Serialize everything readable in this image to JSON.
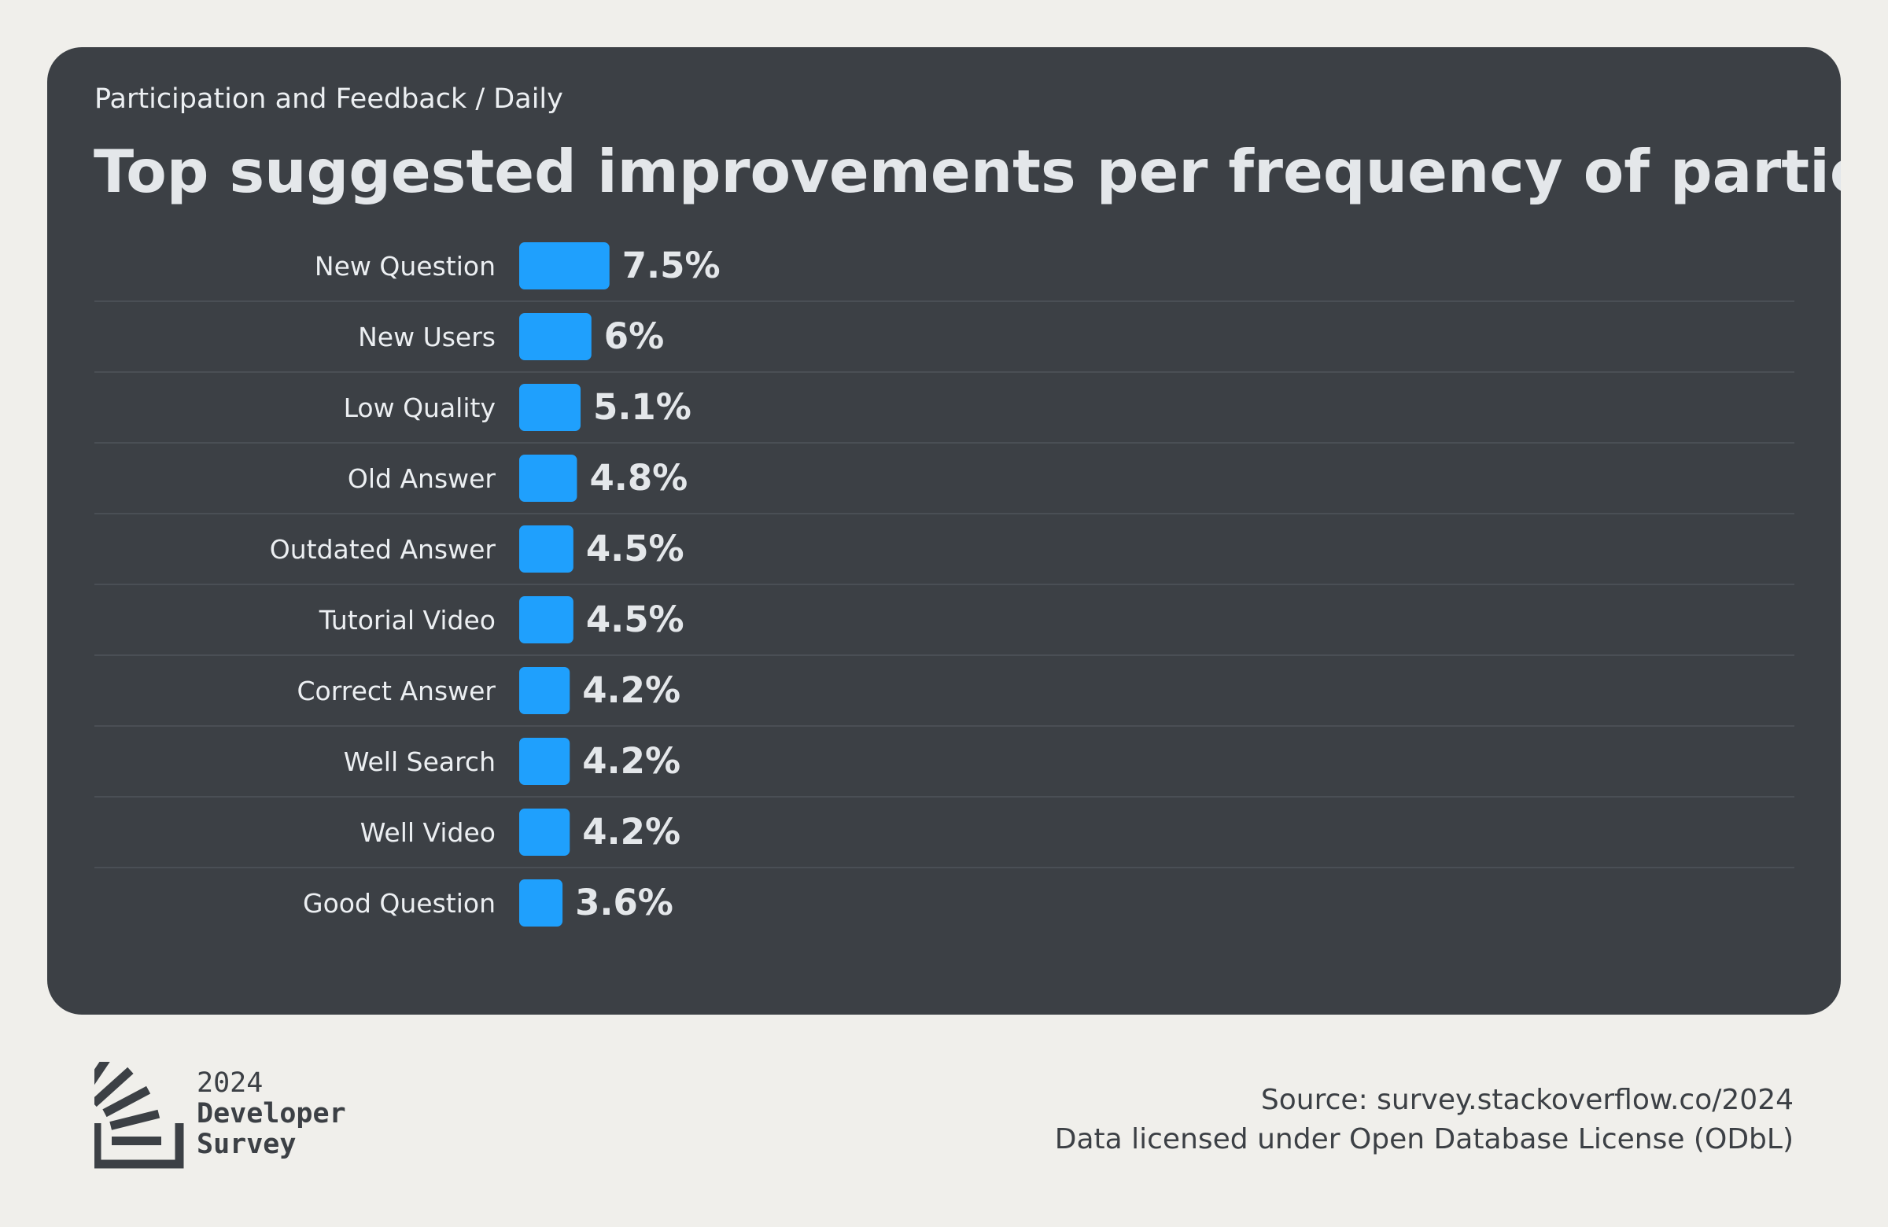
{
  "header": {
    "subtitle": "Participation and Feedback / Daily",
    "title": "Top suggested improvements per frequency of participation"
  },
  "chart_data": {
    "type": "bar",
    "orientation": "horizontal",
    "categories": [
      "New Question",
      "New Users",
      "Low Quality",
      "Old Answer",
      "Outdated Answer",
      "Tutorial Video",
      "Correct Answer",
      "Well Search",
      "Well Video",
      "Good Question"
    ],
    "values": [
      7.5,
      6,
      5.1,
      4.8,
      4.5,
      4.5,
      4.2,
      4.2,
      4.2,
      3.6
    ],
    "value_labels": [
      "7.5%",
      "6%",
      "5.1%",
      "4.8%",
      "4.5%",
      "4.5%",
      "4.2%",
      "4.2%",
      "4.2%",
      "3.6%"
    ],
    "bar_color": "#1fa0fd",
    "grid": false,
    "legend": false
  },
  "footer": {
    "logo_year": "2024",
    "logo_line1": "Developer",
    "logo_line2": "Survey",
    "source": "Source: survey.stackoverflow.co/2024",
    "license": "Data licensed under Open Database License (ODbL)"
  },
  "colors": {
    "background": "#f0efeb",
    "card": "#3c4045",
    "text_light": "#e4e7ea",
    "bar": "#1fa0fd"
  }
}
